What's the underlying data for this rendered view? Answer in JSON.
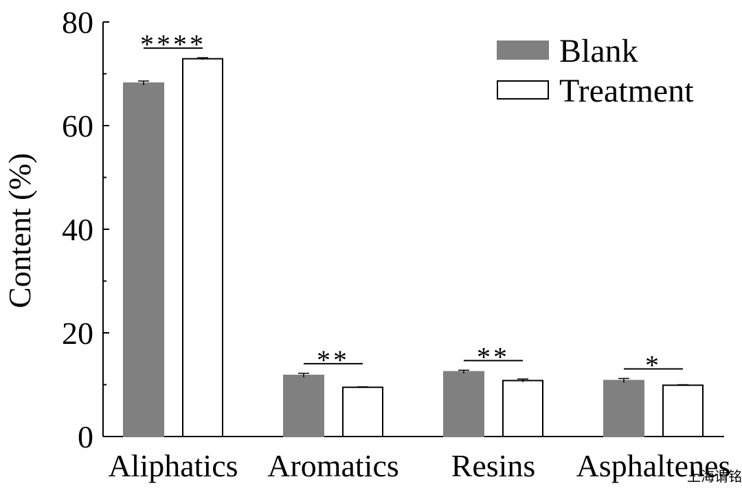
{
  "chart_data": {
    "type": "bar",
    "title": "",
    "xlabel": "",
    "ylabel": "Content (%)",
    "ylim": [
      0,
      80
    ],
    "yticks": [
      0,
      20,
      40,
      60,
      80
    ],
    "categories": [
      "Aliphatics",
      "Aromatics",
      "Resins",
      "Asphaltenes"
    ],
    "series": [
      {
        "name": "Blank",
        "values": [
          68.2,
          11.8,
          12.5,
          10.8
        ],
        "errors": [
          0.4,
          0.4,
          0.3,
          0.4
        ],
        "fill": "#808080",
        "stroke": "#808080"
      },
      {
        "name": "Treatment",
        "values": [
          72.9,
          9.5,
          10.8,
          9.9
        ],
        "errors": [
          0.2,
          0.1,
          0.3,
          0.1
        ],
        "fill": "#ffffff",
        "stroke": "#000000"
      }
    ],
    "significance": [
      "****",
      "**",
      "**",
      "*"
    ],
    "legend_position": "top-right"
  },
  "watermark": "上海谓铭"
}
